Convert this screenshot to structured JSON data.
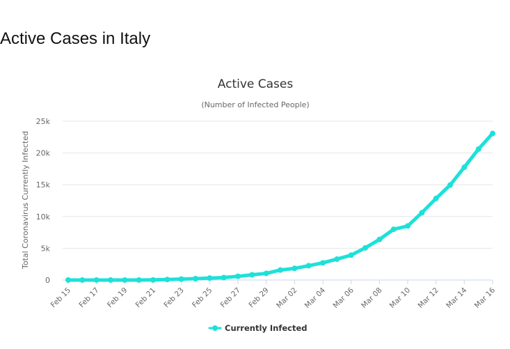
{
  "page": {
    "heading": "Active Cases in Italy"
  },
  "colors": {
    "series": "#1de1d9",
    "grid": "#e6e6e6",
    "axis": "#ccd6eb"
  },
  "chart_data": {
    "type": "line",
    "title": "Active Cases",
    "subtitle": "(Number of Infected People)",
    "xlabel": "",
    "ylabel": "Total Coronavirus Currently Infected",
    "ylim": [
      0,
      25000
    ],
    "yticks": [
      0,
      5000,
      10000,
      15000,
      20000,
      25000
    ],
    "ytick_labels": [
      "0",
      "5k",
      "10k",
      "15k",
      "20k",
      "25k"
    ],
    "x": [
      "Feb 15",
      "Feb 16",
      "Feb 17",
      "Feb 18",
      "Feb 19",
      "Feb 20",
      "Feb 21",
      "Feb 22",
      "Feb 23",
      "Feb 24",
      "Feb 25",
      "Feb 26",
      "Feb 27",
      "Feb 28",
      "Feb 29",
      "Mar 01",
      "Mar 02",
      "Mar 03",
      "Mar 04",
      "Mar 05",
      "Mar 06",
      "Mar 07",
      "Mar 08",
      "Mar 09",
      "Mar 10",
      "Mar 11",
      "Mar 12",
      "Mar 13",
      "Mar 14",
      "Mar 15",
      "Mar 16"
    ],
    "xtick_labels": [
      "Feb 15",
      "Feb 17",
      "Feb 19",
      "Feb 21",
      "Feb 23",
      "Feb 25",
      "Feb 27",
      "Feb 29",
      "Mar 02",
      "Mar 04",
      "Mar 06",
      "Mar 08",
      "Mar 10",
      "Mar 12",
      "Mar 14",
      "Mar 16"
    ],
    "grid": true,
    "legend": "bottom-center",
    "series": [
      {
        "name": "Currently Infected",
        "values": [
          3,
          3,
          3,
          3,
          3,
          3,
          17,
          76,
          150,
          221,
          311,
          385,
          588,
          821,
          1049,
          1577,
          1835,
          2263,
          2706,
          3296,
          3916,
          5061,
          6387,
          7985,
          8514,
          10590,
          12839,
          14955,
          17750,
          20603,
          23073
        ]
      }
    ]
  }
}
